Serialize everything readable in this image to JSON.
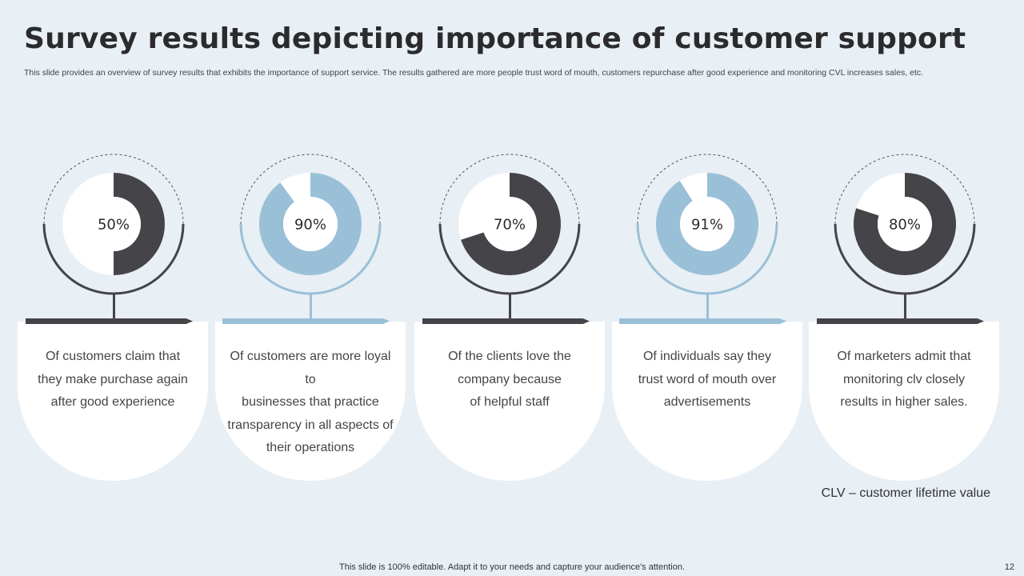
{
  "slide": {
    "title": "Survey results depicting importance of customer support",
    "subtitle": "This slide provides an overview of survey results that exhibits the importance of support service. The results gathered are more people trust word of mouth, customers repurchase after good experience and monitoring CVL increases sales, etc.",
    "note": "CLV – customer lifetime value",
    "footer": "This slide is 100% editable. Adapt it to your needs and capture your audience's attention.",
    "page_number": "12"
  },
  "colors": {
    "dark": "#454449",
    "light": "#9ac0d8",
    "background": "#e8eff5",
    "card": "#ffffff"
  },
  "chart_data": {
    "type": "pie",
    "items": [
      {
        "percent": 50,
        "label": "50%",
        "color": "#454449",
        "lines": [
          "Of customers  claim that",
          "they make purchase again",
          "after good experience"
        ]
      },
      {
        "percent": 90,
        "label": "90%",
        "color": "#9ac0d8",
        "lines": [
          "Of customers  are more loyal to",
          "businesses that practice",
          "transparency  in all aspects of",
          "their operations"
        ]
      },
      {
        "percent": 70,
        "label": "70%",
        "color": "#454449",
        "lines": [
          "Of the clients love the",
          "company because",
          "of helpful staff"
        ]
      },
      {
        "percent": 91,
        "label": "91%",
        "color": "#9ac0d8",
        "lines": [
          "Of individuals say they",
          "trust word of mouth over",
          "advertisements"
        ]
      },
      {
        "percent": 80,
        "label": "80%",
        "color": "#454449",
        "lines": [
          "Of marketers admit that",
          "monitoring clv closely",
          "results in higher sales."
        ]
      }
    ]
  }
}
